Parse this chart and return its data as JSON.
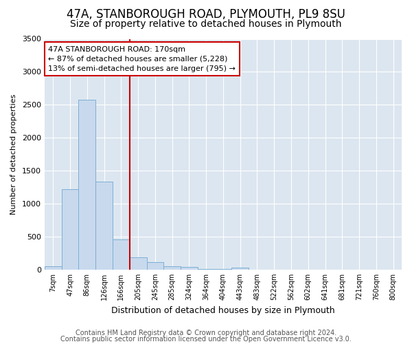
{
  "title": "47A, STANBOROUGH ROAD, PLYMOUTH, PL9 8SU",
  "subtitle": "Size of property relative to detached houses in Plymouth",
  "xlabel": "Distribution of detached houses by size in Plymouth",
  "ylabel": "Number of detached properties",
  "categories": [
    "7sqm",
    "47sqm",
    "86sqm",
    "126sqm",
    "166sqm",
    "205sqm",
    "245sqm",
    "285sqm",
    "324sqm",
    "364sqm",
    "404sqm",
    "443sqm",
    "483sqm",
    "522sqm",
    "562sqm",
    "602sqm",
    "641sqm",
    "681sqm",
    "721sqm",
    "760sqm",
    "800sqm"
  ],
  "values": [
    50,
    1220,
    2580,
    1330,
    460,
    190,
    115,
    55,
    35,
    10,
    5,
    30,
    0,
    0,
    0,
    0,
    0,
    0,
    0,
    0,
    0
  ],
  "bar_color": "#c8d9ed",
  "bar_edge_color": "#7bafd4",
  "red_line_index": 4,
  "red_line_color": "#cc0000",
  "annotation_text": "47A STANBOROUGH ROAD: 170sqm\n← 87% of detached houses are smaller (5,228)\n13% of semi-detached houses are larger (795) →",
  "annotation_box_color": "#ffffff",
  "annotation_box_edge": "#cc0000",
  "ylim": [
    0,
    3500
  ],
  "figure_background": "#ffffff",
  "plot_background": "#dce6f0",
  "footer1": "Contains HM Land Registry data © Crown copyright and database right 2024.",
  "footer2": "Contains public sector information licensed under the Open Government Licence v3.0.",
  "title_fontsize": 12,
  "subtitle_fontsize": 10,
  "footer_fontsize": 7,
  "yticks": [
    0,
    500,
    1000,
    1500,
    2000,
    2500,
    3000,
    3500
  ]
}
